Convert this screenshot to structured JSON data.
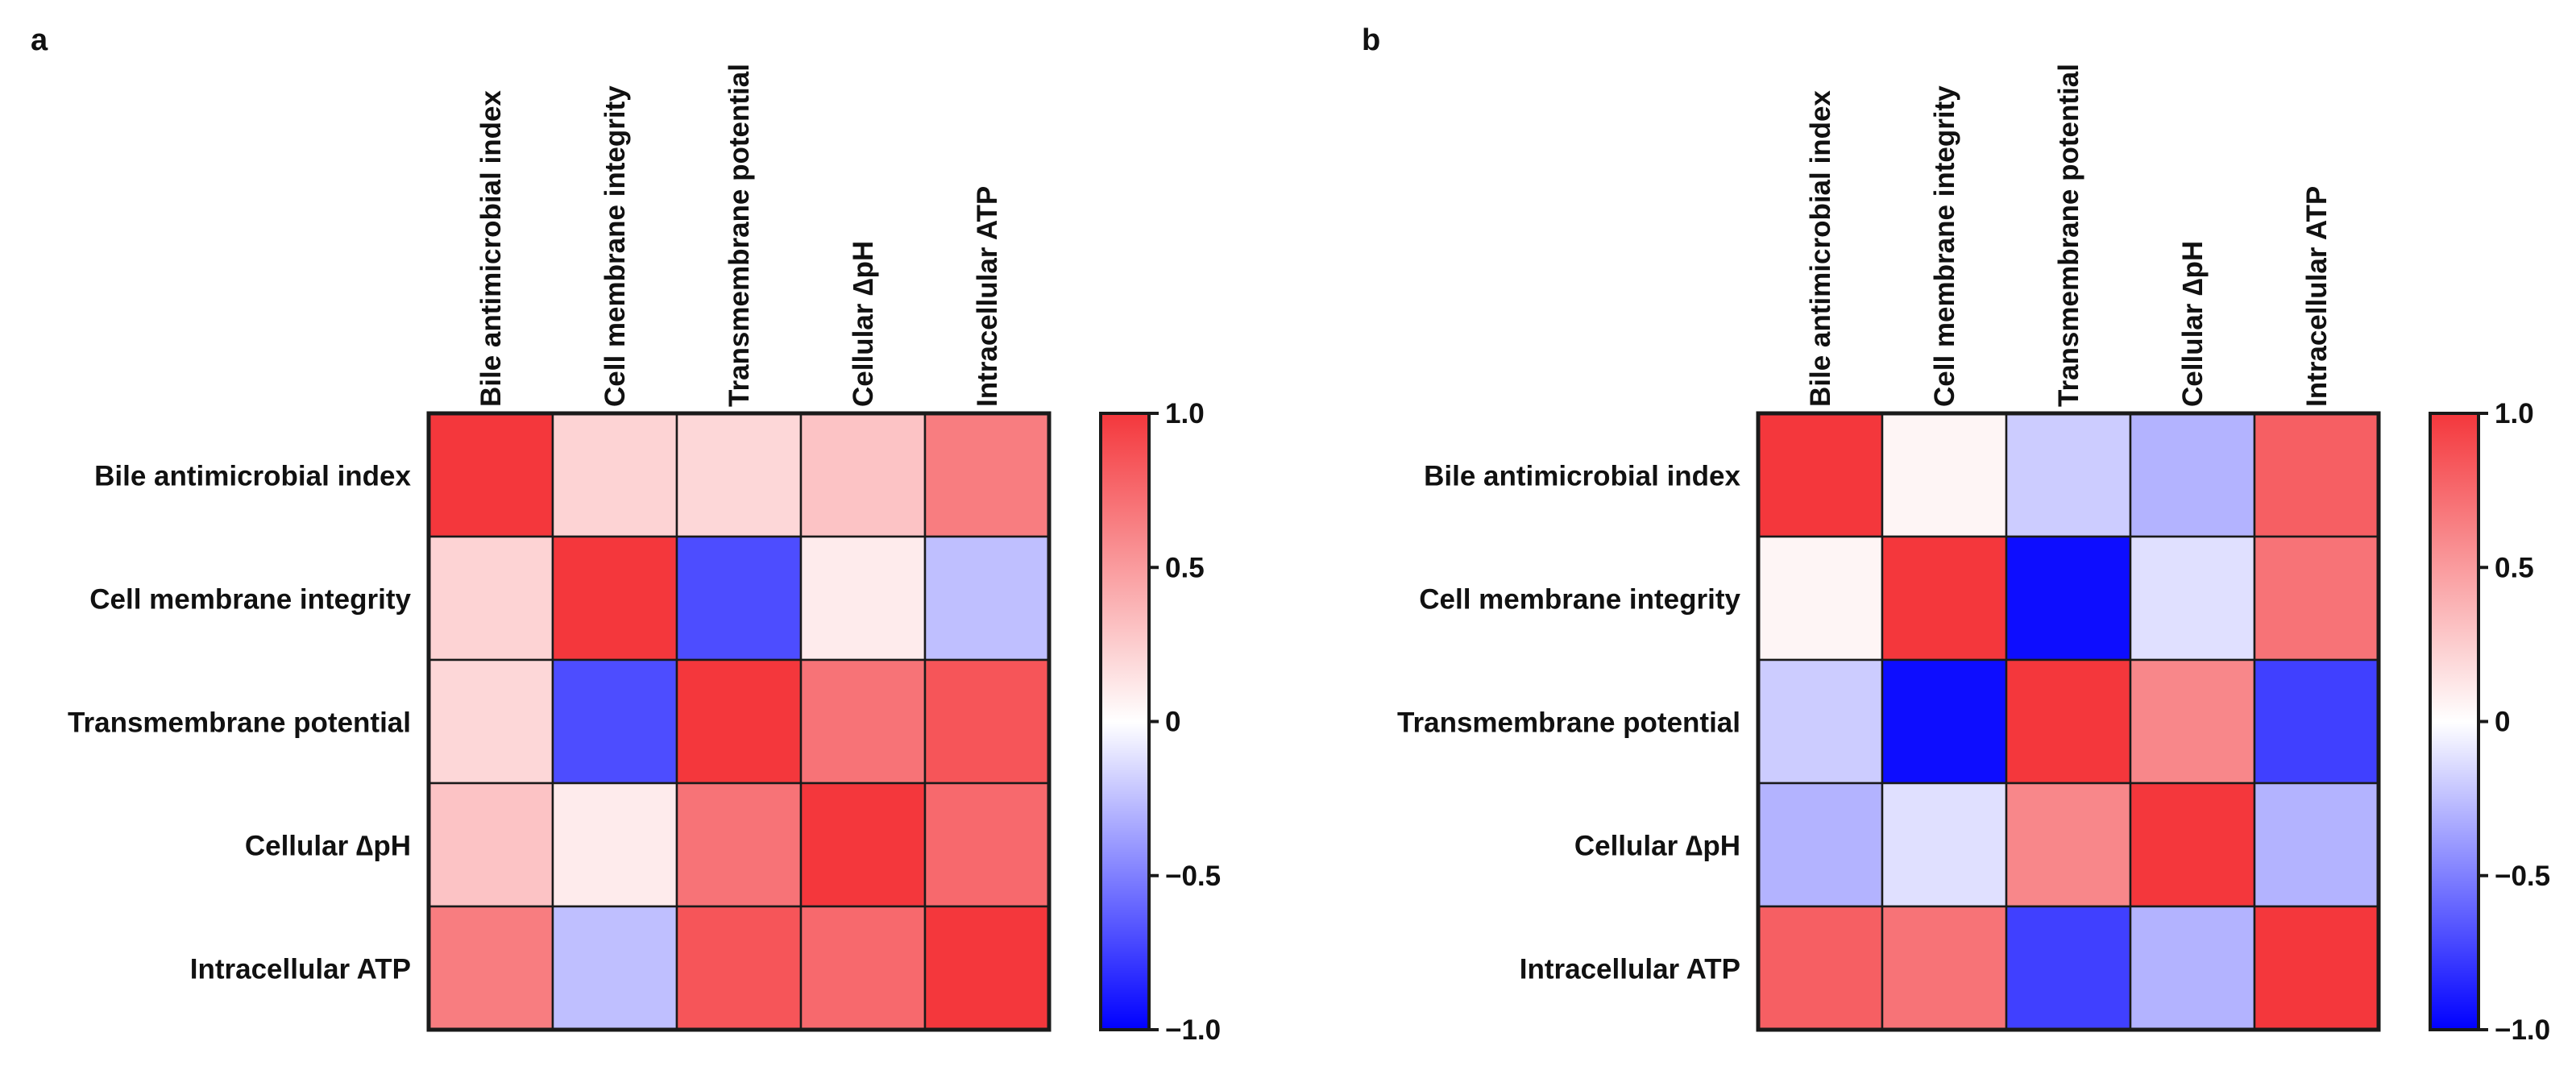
{
  "chart_data": [
    {
      "type": "heatmap",
      "panel_label": "a",
      "row_labels": [
        "Bile antimicrobial index",
        "Cell membrane integrity",
        "Transmembrane potential",
        "Cellular ∆pH",
        "Intracellular ATP"
      ],
      "col_labels": [
        "Bile antimicrobial index",
        "Cell membrane integrity",
        "Transmembrane potential",
        "Cellular ∆pH",
        "Intracellular ATP"
      ],
      "matrix": [
        [
          1.0,
          0.22,
          0.2,
          0.3,
          0.65
        ],
        [
          0.22,
          1.0,
          -0.7,
          0.1,
          -0.25
        ],
        [
          0.2,
          -0.7,
          1.0,
          0.7,
          0.85
        ],
        [
          0.3,
          0.1,
          0.7,
          1.0,
          0.75
        ],
        [
          0.65,
          -0.25,
          0.85,
          0.75,
          1.0
        ]
      ],
      "colorbar": {
        "min": -1.0,
        "max": 1.0,
        "ticks": [
          1.0,
          0.5,
          0,
          -0.5,
          -1.0
        ],
        "tick_labels": [
          "1.0",
          "0.5",
          "0",
          "−0.5",
          "−1.0"
        ]
      }
    },
    {
      "type": "heatmap",
      "panel_label": "b",
      "row_labels": [
        "Bile antimicrobial index",
        "Cell membrane integrity",
        "Transmembrane potential",
        "Cellular ∆pH",
        "Intracellular ATP"
      ],
      "col_labels": [
        "Bile antimicrobial index",
        "Cell membrane integrity",
        "Transmembrane potential",
        "Cellular ∆pH",
        "Intracellular ATP"
      ],
      "matrix": [
        [
          1.0,
          0.05,
          -0.2,
          -0.3,
          0.8
        ],
        [
          0.05,
          1.0,
          -0.95,
          -0.12,
          0.7
        ],
        [
          -0.2,
          -0.95,
          1.0,
          0.6,
          -0.75
        ],
        [
          -0.3,
          -0.12,
          0.6,
          1.0,
          -0.3
        ],
        [
          0.8,
          0.7,
          -0.75,
          -0.3,
          1.0
        ]
      ],
      "colorbar": {
        "min": -1.0,
        "max": 1.0,
        "ticks": [
          1.0,
          0.5,
          0,
          -0.5,
          -1.0
        ],
        "tick_labels": [
          "1.0",
          "0.5",
          "0",
          "−0.5",
          "−1.0"
        ]
      }
    }
  ],
  "colors": {
    "positive": "#f4373c",
    "neutral": "#ffffff",
    "negative": "#0000ff",
    "grid": "#1a1a1a"
  }
}
